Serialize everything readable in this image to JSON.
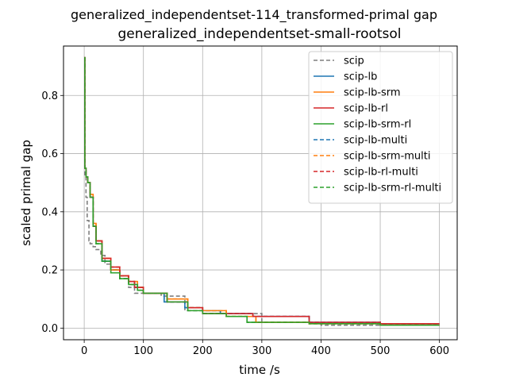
{
  "chart_data": {
    "type": "line",
    "suptitle": "generalized_independentset-114_transformed-primal gap",
    "title": "generalized_independentset-small-rootsol",
    "xlabel": "time /s",
    "ylabel": "scaled primal gap",
    "xlim": [
      -35,
      630
    ],
    "ylim": [
      -0.04,
      0.97
    ],
    "xticks": [
      0,
      100,
      200,
      300,
      400,
      500,
      600
    ],
    "yticks": [
      0.0,
      0.2,
      0.4,
      0.6,
      0.8
    ],
    "xtick_labels": [
      "0",
      "100",
      "200",
      "300",
      "400",
      "500",
      "600"
    ],
    "ytick_labels": [
      "0.0",
      "0.2",
      "0.4",
      "0.6",
      "0.8"
    ],
    "grid": true,
    "legend_position": "top-right",
    "series": [
      {
        "name": "scip",
        "color": "#7f7f7f",
        "style": "dashed",
        "x": [
          0,
          1,
          3,
          5,
          8,
          10,
          15,
          20,
          28,
          35,
          45,
          60,
          75,
          85,
          90,
          130,
          170,
          200,
          300,
          400,
          500,
          600
        ],
        "y": [
          0.93,
          0.52,
          0.45,
          0.37,
          0.3,
          0.29,
          0.28,
          0.27,
          0.25,
          0.22,
          0.2,
          0.17,
          0.14,
          0.12,
          0.12,
          0.11,
          0.06,
          0.05,
          0.02,
          0.01,
          0.01,
          0.01
        ]
      },
      {
        "name": "scip-lb",
        "color": "#1f77b4",
        "style": "solid",
        "x": [
          0,
          1,
          3,
          6,
          10,
          15,
          20,
          30,
          45,
          60,
          75,
          85,
          100,
          135,
          170,
          200,
          230,
          285,
          380,
          500,
          600
        ],
        "y": [
          0.93,
          0.55,
          0.52,
          0.5,
          0.45,
          0.35,
          0.3,
          0.23,
          0.2,
          0.18,
          0.16,
          0.14,
          0.12,
          0.09,
          0.07,
          0.06,
          0.05,
          0.04,
          0.02,
          0.015,
          0.015
        ]
      },
      {
        "name": "scip-lb-srm",
        "color": "#ff7f0e",
        "style": "solid",
        "x": [
          0,
          1,
          3,
          6,
          10,
          15,
          20,
          30,
          45,
          60,
          75,
          90,
          100,
          140,
          175,
          200,
          240,
          290,
          380,
          500,
          600
        ],
        "y": [
          0.93,
          0.55,
          0.52,
          0.5,
          0.46,
          0.36,
          0.3,
          0.24,
          0.2,
          0.18,
          0.16,
          0.14,
          0.12,
          0.1,
          0.07,
          0.06,
          0.04,
          0.02,
          0.015,
          0.01,
          0.01
        ]
      },
      {
        "name": "scip-lb-rl",
        "color": "#d62728",
        "style": "solid",
        "x": [
          0,
          1,
          3,
          6,
          10,
          15,
          20,
          30,
          45,
          60,
          75,
          85,
          100,
          140,
          175,
          200,
          230,
          285,
          380,
          500,
          600
        ],
        "y": [
          0.93,
          0.55,
          0.52,
          0.5,
          0.45,
          0.35,
          0.3,
          0.24,
          0.21,
          0.18,
          0.16,
          0.14,
          0.12,
          0.09,
          0.07,
          0.05,
          0.05,
          0.04,
          0.02,
          0.015,
          0.015
        ]
      },
      {
        "name": "scip-lb-srm-rl",
        "color": "#2ca02c",
        "style": "solid",
        "x": [
          0,
          1,
          3,
          6,
          10,
          15,
          20,
          30,
          45,
          60,
          75,
          90,
          100,
          140,
          175,
          200,
          240,
          275,
          380,
          500,
          600
        ],
        "y": [
          0.93,
          0.55,
          0.52,
          0.5,
          0.45,
          0.35,
          0.29,
          0.23,
          0.19,
          0.17,
          0.15,
          0.13,
          0.12,
          0.09,
          0.06,
          0.05,
          0.04,
          0.02,
          0.015,
          0.01,
          0.01
        ]
      },
      {
        "name": "scip-lb-multi",
        "color": "#1f77b4",
        "style": "dashed",
        "x": [
          0,
          1,
          3,
          6,
          10,
          15,
          20,
          30,
          45,
          60,
          75,
          85,
          100,
          135,
          170,
          200,
          230,
          285,
          380,
          500,
          600
        ],
        "y": [
          0.93,
          0.55,
          0.52,
          0.5,
          0.45,
          0.35,
          0.3,
          0.23,
          0.2,
          0.18,
          0.16,
          0.14,
          0.12,
          0.09,
          0.07,
          0.06,
          0.05,
          0.04,
          0.02,
          0.015,
          0.015
        ]
      },
      {
        "name": "scip-lb-srm-multi",
        "color": "#ff7f0e",
        "style": "dashed",
        "x": [
          0,
          1,
          3,
          6,
          10,
          15,
          20,
          30,
          45,
          60,
          75,
          90,
          100,
          140,
          175,
          200,
          240,
          290,
          380,
          500,
          600
        ],
        "y": [
          0.93,
          0.55,
          0.52,
          0.5,
          0.46,
          0.36,
          0.3,
          0.24,
          0.2,
          0.18,
          0.16,
          0.14,
          0.12,
          0.1,
          0.07,
          0.06,
          0.04,
          0.02,
          0.015,
          0.01,
          0.01
        ]
      },
      {
        "name": "scip-lb-rl-multi",
        "color": "#d62728",
        "style": "dashed",
        "x": [
          0,
          1,
          3,
          6,
          10,
          15,
          20,
          30,
          45,
          60,
          75,
          85,
          100,
          140,
          175,
          200,
          230,
          285,
          380,
          500,
          600
        ],
        "y": [
          0.93,
          0.55,
          0.52,
          0.5,
          0.45,
          0.35,
          0.3,
          0.24,
          0.21,
          0.18,
          0.16,
          0.14,
          0.12,
          0.09,
          0.07,
          0.05,
          0.05,
          0.04,
          0.02,
          0.015,
          0.015
        ]
      },
      {
        "name": "scip-lb-srm-rl-multi",
        "color": "#2ca02c",
        "style": "dashed",
        "x": [
          0,
          1,
          3,
          6,
          10,
          15,
          20,
          30,
          45,
          60,
          75,
          90,
          100,
          140,
          175,
          200,
          240,
          275,
          380,
          500,
          600
        ],
        "y": [
          0.93,
          0.55,
          0.52,
          0.5,
          0.45,
          0.35,
          0.29,
          0.23,
          0.19,
          0.17,
          0.15,
          0.13,
          0.12,
          0.09,
          0.06,
          0.05,
          0.04,
          0.02,
          0.015,
          0.01,
          0.01
        ]
      }
    ]
  }
}
